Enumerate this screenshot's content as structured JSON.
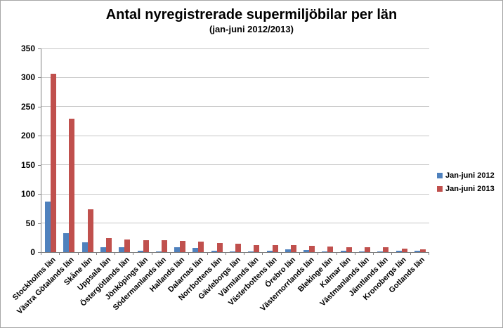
{
  "title": "Antal nyregistrerade supermiljöbilar per län",
  "subtitle": "(jan-juni 2012/2013)",
  "colors": {
    "series_2012": "#4f81bd",
    "series_2013": "#c0504d",
    "gridline": "#c6c6c6",
    "axis": "#808080",
    "text": "#000000",
    "background": "#ffffff"
  },
  "legend": {
    "position": "right",
    "items": [
      {
        "label": "Jan-juni 2012",
        "color": "#4f81bd"
      },
      {
        "label": "Jan-juni 2013",
        "color": "#c0504d"
      }
    ]
  },
  "chart_data": {
    "type": "bar",
    "title": "Antal nyregistrerade supermiljöbilar per län",
    "subtitle": "(jan-juni 2012/2013)",
    "xlabel": "",
    "ylabel": "",
    "ylim": [
      0,
      350
    ],
    "yticks": [
      0,
      50,
      100,
      150,
      200,
      250,
      300,
      350
    ],
    "grid": true,
    "legend_position": "right",
    "categories": [
      "Stockholms län",
      "Västra Götalands län",
      "Skåne län",
      "Uppsala län",
      "Östergötlands län",
      "Jönköpings län",
      "Södermanlands län",
      "Hallands län",
      "Dalarnas län",
      "Norrbottens län",
      "Gävleborgs län",
      "Värmlands län",
      "Västerbottens län",
      "Örebro län",
      "Västernorrlands län",
      "Blekinge län",
      "Kalmar län",
      "Västmanlands län",
      "Jämtlands län",
      "Kronobergs län",
      "Gotlands län"
    ],
    "series": [
      {
        "name": "Jan-juni 2012",
        "color": "#4f81bd",
        "values": [
          87,
          33,
          17,
          8,
          9,
          2,
          1,
          8,
          7,
          2,
          1,
          1,
          2,
          5,
          4,
          1,
          3,
          1,
          1,
          2,
          2
        ]
      },
      {
        "name": "Jan-juni 2013",
        "color": "#c0504d",
        "values": [
          306,
          229,
          74,
          24,
          22,
          21,
          20,
          19,
          18,
          16,
          14,
          12,
          12,
          12,
          11,
          10,
          9,
          9,
          8,
          6,
          5
        ]
      }
    ]
  }
}
